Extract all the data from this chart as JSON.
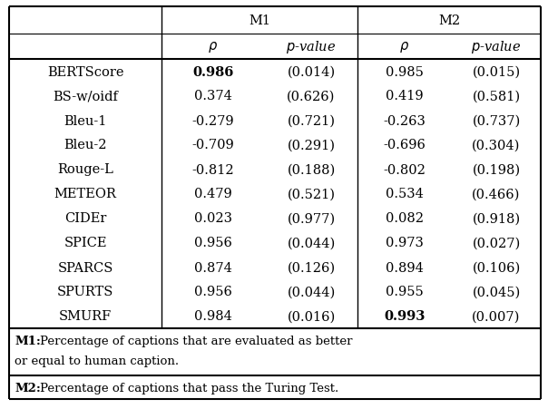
{
  "rows": [
    [
      "BERTScore",
      "0.986",
      "(0.014)",
      "0.985",
      "(0.015)",
      true,
      false
    ],
    [
      "BS-w/oidf",
      "0.374",
      "(0.626)",
      "0.419",
      "(0.581)",
      false,
      false
    ],
    [
      "Bleu-1",
      "-0.279",
      "(0.721)",
      "-0.263",
      "(0.737)",
      false,
      false
    ],
    [
      "Bleu-2",
      "-0.709",
      "(0.291)",
      "-0.696",
      "(0.304)",
      false,
      false
    ],
    [
      "Rouge-L",
      "-0.812",
      "(0.188)",
      "-0.802",
      "(0.198)",
      false,
      false
    ],
    [
      "METEOR",
      "0.479",
      "(0.521)",
      "0.534",
      "(0.466)",
      false,
      false
    ],
    [
      "CIDEr",
      "0.023",
      "(0.977)",
      "0.082",
      "(0.918)",
      false,
      false
    ],
    [
      "SPICE",
      "0.956",
      "(0.044)",
      "0.973",
      "(0.027)",
      false,
      false
    ],
    [
      "SPARCS",
      "0.874",
      "(0.126)",
      "0.894",
      "(0.106)",
      false,
      false
    ],
    [
      "SPURTS",
      "0.956",
      "(0.044)",
      "0.955",
      "(0.045)",
      false,
      false
    ],
    [
      "SMURF",
      "0.984",
      "(0.016)",
      "0.993",
      "(0.007)",
      false,
      true
    ]
  ],
  "bg_color": "#ffffff",
  "fig_w": 6.04,
  "fig_h": 4.52,
  "dpi": 100
}
